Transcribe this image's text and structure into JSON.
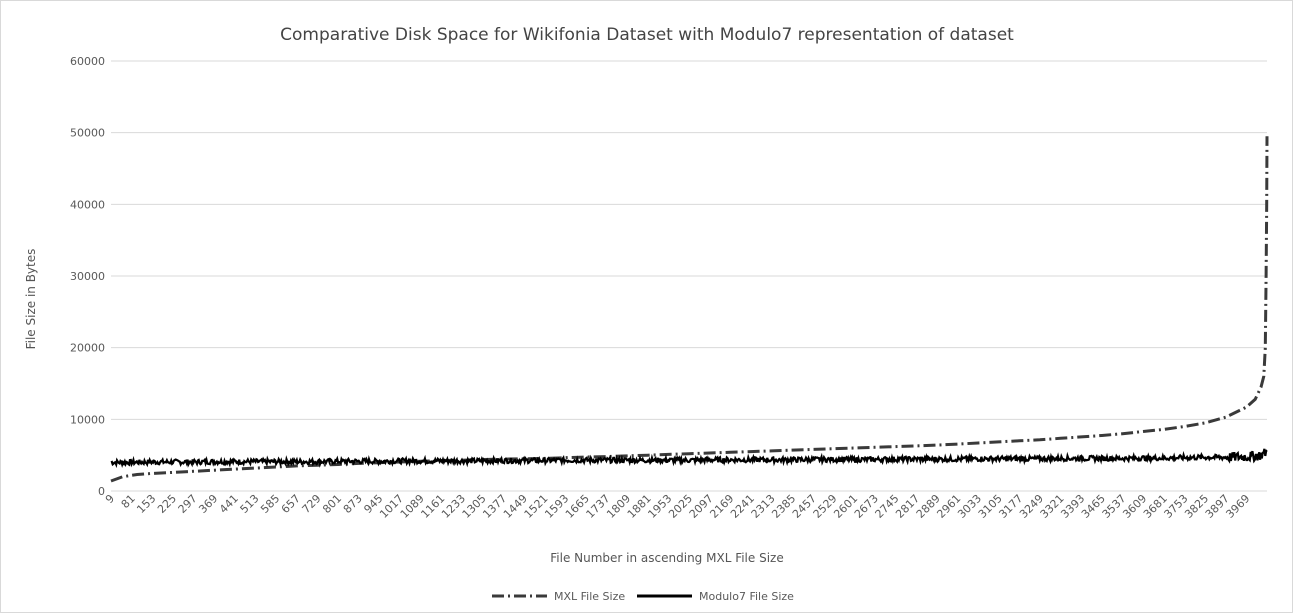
{
  "chart_data": {
    "type": "line",
    "title": "Comparative Disk Space for Wikifonia Dataset with Modulo7 representation of dataset",
    "xlabel": "File Number in ascending MXL File Size",
    "ylabel": "File Size in Bytes",
    "ylim": [
      0,
      60000
    ],
    "yticks": [
      0,
      10000,
      20000,
      30000,
      40000,
      50000,
      60000
    ],
    "x_tick_labels": [
      "9",
      "81",
      "153",
      "225",
      "297",
      "369",
      "441",
      "513",
      "585",
      "657",
      "729",
      "801",
      "873",
      "945",
      "1017",
      "1089",
      "1161",
      "1233",
      "1305",
      "1377",
      "1449",
      "1521",
      "1593",
      "1665",
      "1737",
      "1809",
      "1881",
      "1953",
      "2025",
      "2097",
      "2169",
      "2241",
      "2313",
      "2385",
      "2457",
      "2529",
      "2601",
      "2673",
      "2745",
      "2817",
      "2889",
      "2961",
      "3033",
      "3105",
      "3177",
      "3249",
      "3321",
      "3393",
      "3465",
      "3537",
      "3609",
      "3681",
      "3753",
      "3825",
      "3897",
      "3969"
    ],
    "xlim": [
      9,
      4041
    ],
    "grid": "horizontal",
    "legend_position": "bottom",
    "series": [
      {
        "name": "MXL File Size",
        "style": "dash-dot",
        "color": "#000000",
        "x": [
          9,
          50,
          100,
          153,
          225,
          297,
          369,
          441,
          513,
          585,
          657,
          729,
          801,
          873,
          945,
          1017,
          1089,
          1161,
          1233,
          1305,
          1377,
          1449,
          1521,
          1593,
          1665,
          1737,
          1809,
          1881,
          1953,
          2025,
          2097,
          2169,
          2241,
          2313,
          2385,
          2457,
          2529,
          2601,
          2673,
          2745,
          2817,
          2889,
          2961,
          3033,
          3105,
          3177,
          3249,
          3321,
          3393,
          3465,
          3537,
          3609,
          3681,
          3753,
          3825,
          3897,
          3969,
          4000,
          4020,
          4030,
          4035,
          4038,
          4040,
          4041
        ],
        "values": [
          1400,
          2000,
          2300,
          2450,
          2600,
          2750,
          2900,
          3050,
          3200,
          3350,
          3500,
          3600,
          3700,
          3850,
          3950,
          4050,
          4150,
          4250,
          4300,
          4400,
          4450,
          4500,
          4550,
          4650,
          4750,
          4800,
          4900,
          5000,
          5100,
          5200,
          5300,
          5400,
          5500,
          5600,
          5700,
          5800,
          5900,
          6000,
          6100,
          6200,
          6300,
          6400,
          6550,
          6700,
          6850,
          7000,
          7150,
          7350,
          7550,
          7750,
          8000,
          8300,
          8600,
          9000,
          9500,
          10300,
          11700,
          12800,
          14500,
          16000,
          20000,
          30000,
          40000,
          49500
        ]
      },
      {
        "name": "Modulo7 File Size",
        "style": "solid",
        "color": "#000000",
        "x": [
          9,
          81,
          153,
          225,
          297,
          369,
          441,
          513,
          585,
          657,
          729,
          801,
          873,
          945,
          1017,
          1089,
          1161,
          1233,
          1305,
          1377,
          1449,
          1521,
          1593,
          1665,
          1737,
          1809,
          1881,
          1953,
          2025,
          2097,
          2169,
          2241,
          2313,
          2385,
          2457,
          2529,
          2601,
          2673,
          2745,
          2817,
          2889,
          2961,
          3033,
          3105,
          3177,
          3249,
          3321,
          3393,
          3465,
          3537,
          3609,
          3681,
          3753,
          3825,
          3897,
          3969,
          4000,
          4020,
          4041
        ],
        "values": [
          4000,
          4000,
          4050,
          4050,
          4050,
          4100,
          4100,
          4100,
          4100,
          4100,
          4100,
          4150,
          4150,
          4150,
          4200,
          4200,
          4200,
          4200,
          4200,
          4250,
          4250,
          4250,
          4300,
          4300,
          4300,
          4300,
          4300,
          4300,
          4300,
          4350,
          4350,
          4350,
          4350,
          4350,
          4400,
          4400,
          4400,
          4400,
          4450,
          4450,
          4450,
          4450,
          4500,
          4500,
          4500,
          4500,
          4550,
          4550,
          4550,
          4550,
          4600,
          4600,
          4650,
          4700,
          4700,
          4800,
          4900,
          5000,
          5500
        ],
        "noise_amplitude": 350
      }
    ]
  }
}
